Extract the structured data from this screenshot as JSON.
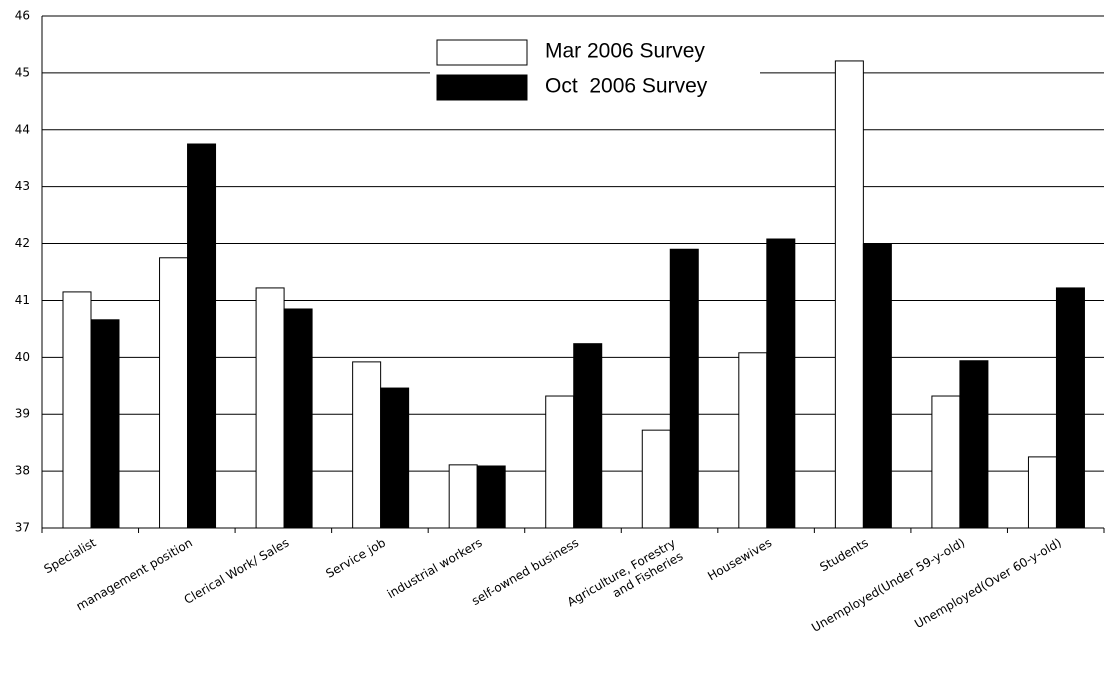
{
  "chart_data": {
    "type": "bar",
    "categories": [
      "Specialist",
      "management position",
      "Clerical Work/ Sales",
      "Service job",
      "industrial workers",
      "self-owned business",
      "Agriculture, Forestry\nand Fisheries",
      "Housewives",
      "Students",
      "Unemployed(Under 59-y-old)",
      "Unemployed(Over 60-y-old)"
    ],
    "series": [
      {
        "name": "Mar 2006 Survey",
        "color": "#ffffff",
        "values": [
          41.15,
          41.75,
          41.22,
          39.92,
          38.11,
          39.32,
          38.72,
          40.08,
          45.21,
          39.32,
          38.25
        ]
      },
      {
        "name": "Oct  2006 Survey",
        "color": "#000000",
        "values": [
          40.66,
          43.75,
          40.85,
          39.46,
          38.09,
          40.24,
          41.9,
          42.08,
          41.99,
          39.94,
          41.22
        ]
      }
    ],
    "ylim": [
      37,
      46
    ],
    "yticks": [
      37,
      38,
      39,
      40,
      41,
      42,
      43,
      44,
      45,
      46
    ],
    "grid": true
  }
}
